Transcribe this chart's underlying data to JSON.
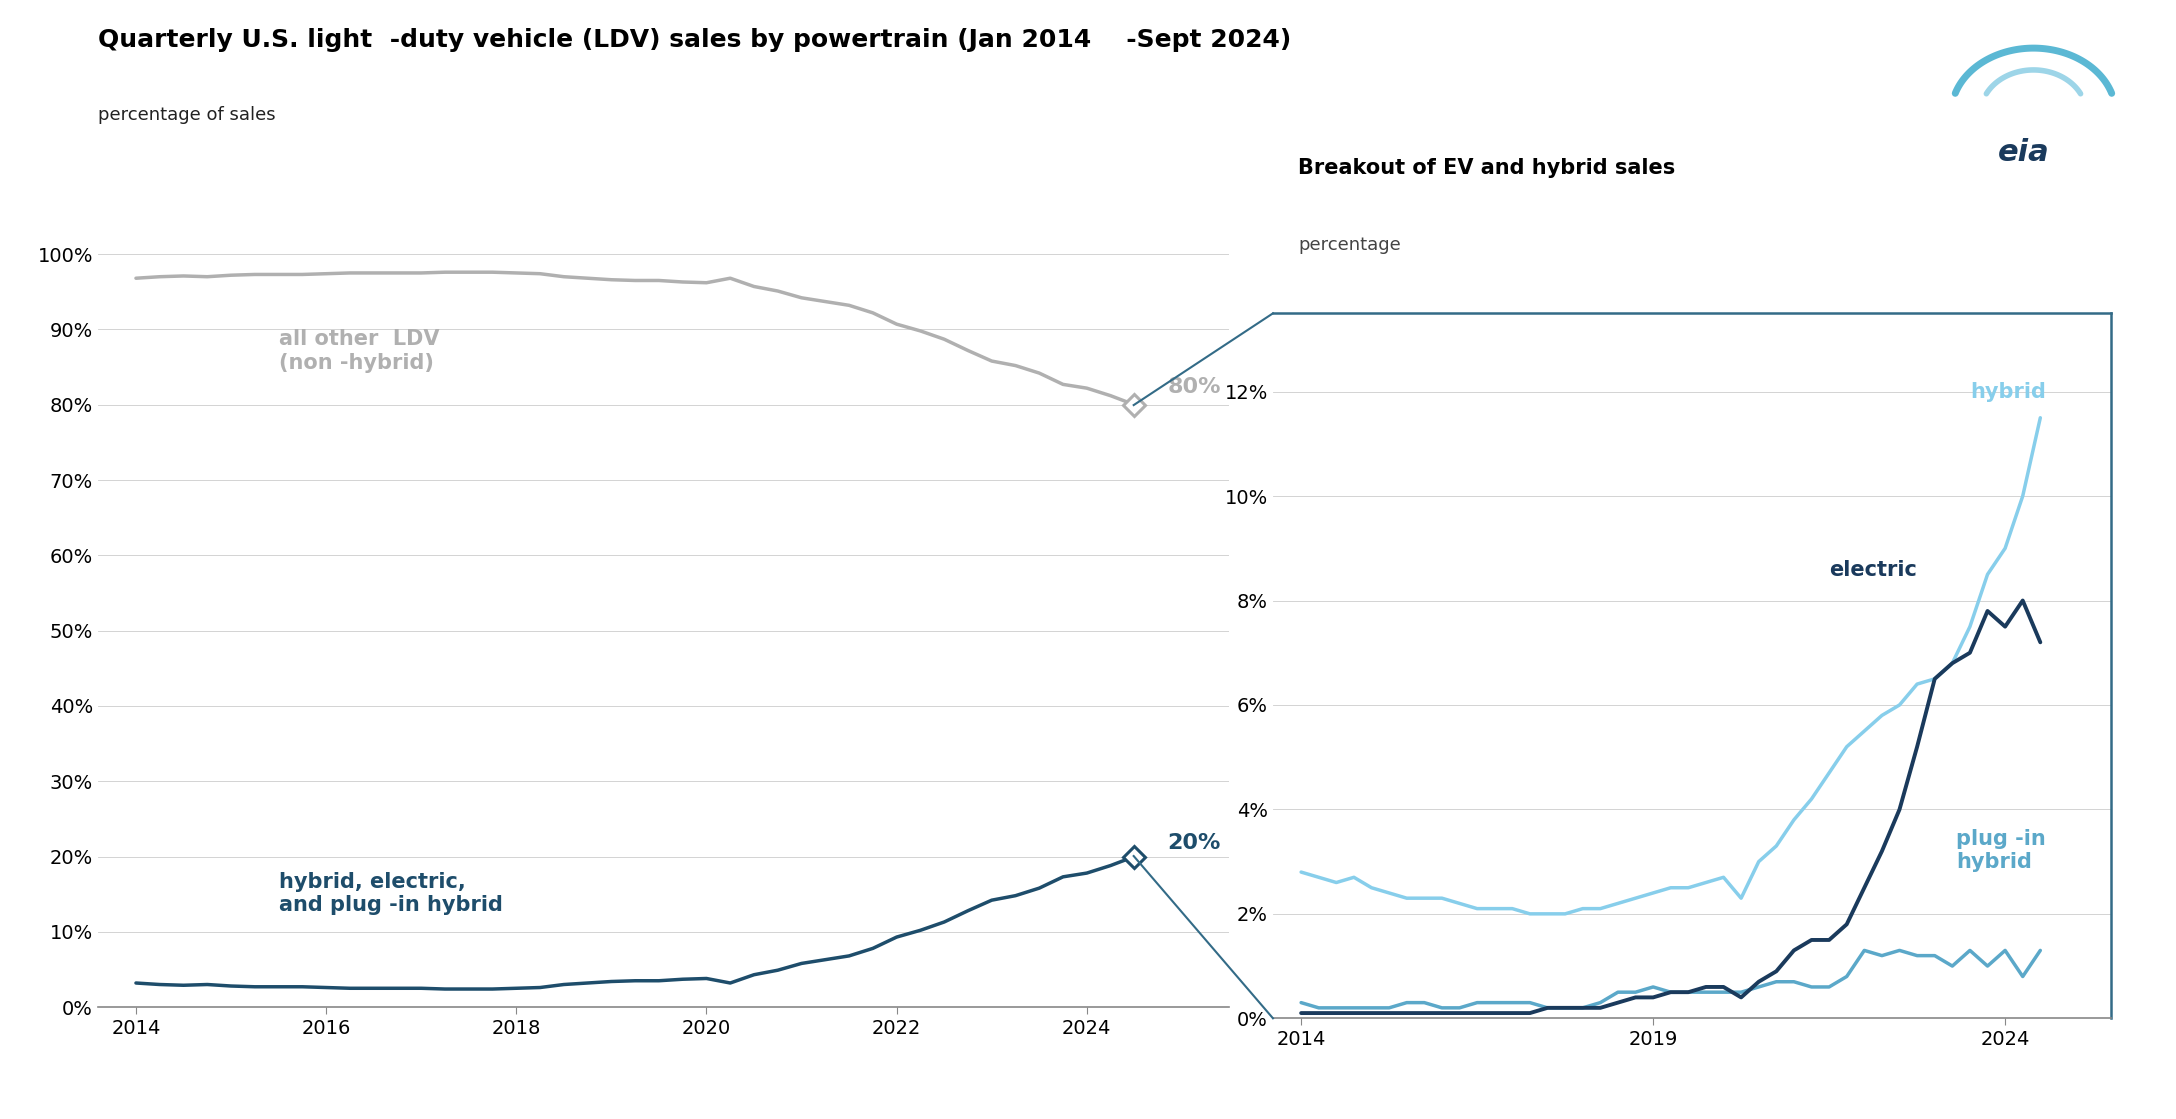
{
  "title": "Quarterly U.S. light  -duty vehicle (LDV) sales by powertrain (Jan 2014    -Sept 2024)",
  "subtitle": "percentage of sales",
  "inset_title": "Breakout of EV and hybrid sales",
  "inset_subtitle": "percentage",
  "bg_color": "#ffffff",
  "main_line_color_other": "#b0b0b0",
  "main_line_color_combined": "#1e4d6b",
  "hybrid_color": "#87ceeb",
  "electric_color": "#1a3a5c",
  "plugin_color": "#5ba8c9",
  "quarters": [
    2014.0,
    2014.25,
    2014.5,
    2014.75,
    2015.0,
    2015.25,
    2015.5,
    2015.75,
    2016.0,
    2016.25,
    2016.5,
    2016.75,
    2017.0,
    2017.25,
    2017.5,
    2017.75,
    2018.0,
    2018.25,
    2018.5,
    2018.75,
    2019.0,
    2019.25,
    2019.5,
    2019.75,
    2020.0,
    2020.25,
    2020.5,
    2020.75,
    2021.0,
    2021.25,
    2021.5,
    2021.75,
    2022.0,
    2022.25,
    2022.5,
    2022.75,
    2023.0,
    2023.25,
    2023.5,
    2023.75,
    2024.0,
    2024.25,
    2024.5
  ],
  "combined_pct": [
    3.2,
    3.0,
    2.9,
    3.0,
    2.8,
    2.7,
    2.7,
    2.7,
    2.6,
    2.5,
    2.5,
    2.5,
    2.5,
    2.4,
    2.4,
    2.4,
    2.5,
    2.6,
    3.0,
    3.2,
    3.4,
    3.5,
    3.5,
    3.7,
    3.8,
    3.2,
    4.3,
    4.9,
    5.8,
    6.3,
    6.8,
    7.8,
    9.3,
    10.2,
    11.3,
    12.8,
    14.2,
    14.8,
    15.8,
    17.3,
    17.8,
    18.8,
    20.0
  ],
  "other_pct": [
    96.8,
    97.0,
    97.1,
    97.0,
    97.2,
    97.3,
    97.3,
    97.3,
    97.4,
    97.5,
    97.5,
    97.5,
    97.5,
    97.6,
    97.6,
    97.6,
    97.5,
    97.4,
    97.0,
    96.8,
    96.6,
    96.5,
    96.5,
    96.3,
    96.2,
    96.8,
    95.7,
    95.1,
    94.2,
    93.7,
    93.2,
    92.2,
    90.7,
    89.8,
    88.7,
    87.2,
    85.8,
    85.2,
    84.2,
    82.7,
    82.2,
    81.2,
    80.0
  ],
  "hybrid_pct": [
    2.8,
    2.7,
    2.6,
    2.7,
    2.5,
    2.4,
    2.3,
    2.3,
    2.3,
    2.2,
    2.1,
    2.1,
    2.1,
    2.0,
    2.0,
    2.0,
    2.1,
    2.1,
    2.2,
    2.3,
    2.4,
    2.5,
    2.5,
    2.6,
    2.7,
    2.3,
    3.0,
    3.3,
    3.8,
    4.2,
    4.7,
    5.2,
    5.5,
    5.8,
    6.0,
    6.4,
    6.5,
    6.8,
    7.5,
    8.5,
    9.0,
    10.0,
    11.5
  ],
  "electric_pct": [
    0.1,
    0.1,
    0.1,
    0.1,
    0.1,
    0.1,
    0.1,
    0.1,
    0.1,
    0.1,
    0.1,
    0.1,
    0.1,
    0.1,
    0.2,
    0.2,
    0.2,
    0.2,
    0.3,
    0.4,
    0.4,
    0.5,
    0.5,
    0.6,
    0.6,
    0.4,
    0.7,
    0.9,
    1.3,
    1.5,
    1.5,
    1.8,
    2.5,
    3.2,
    4.0,
    5.2,
    6.5,
    6.8,
    7.0,
    7.8,
    7.5,
    8.0,
    7.2
  ],
  "plugin_pct": [
    0.3,
    0.2,
    0.2,
    0.2,
    0.2,
    0.2,
    0.3,
    0.3,
    0.2,
    0.2,
    0.3,
    0.3,
    0.3,
    0.3,
    0.2,
    0.2,
    0.2,
    0.3,
    0.5,
    0.5,
    0.6,
    0.5,
    0.5,
    0.5,
    0.5,
    0.5,
    0.6,
    0.7,
    0.7,
    0.6,
    0.6,
    0.8,
    1.3,
    1.2,
    1.3,
    1.2,
    1.2,
    1.0,
    1.3,
    1.0,
    1.3,
    0.8,
    1.3
  ]
}
